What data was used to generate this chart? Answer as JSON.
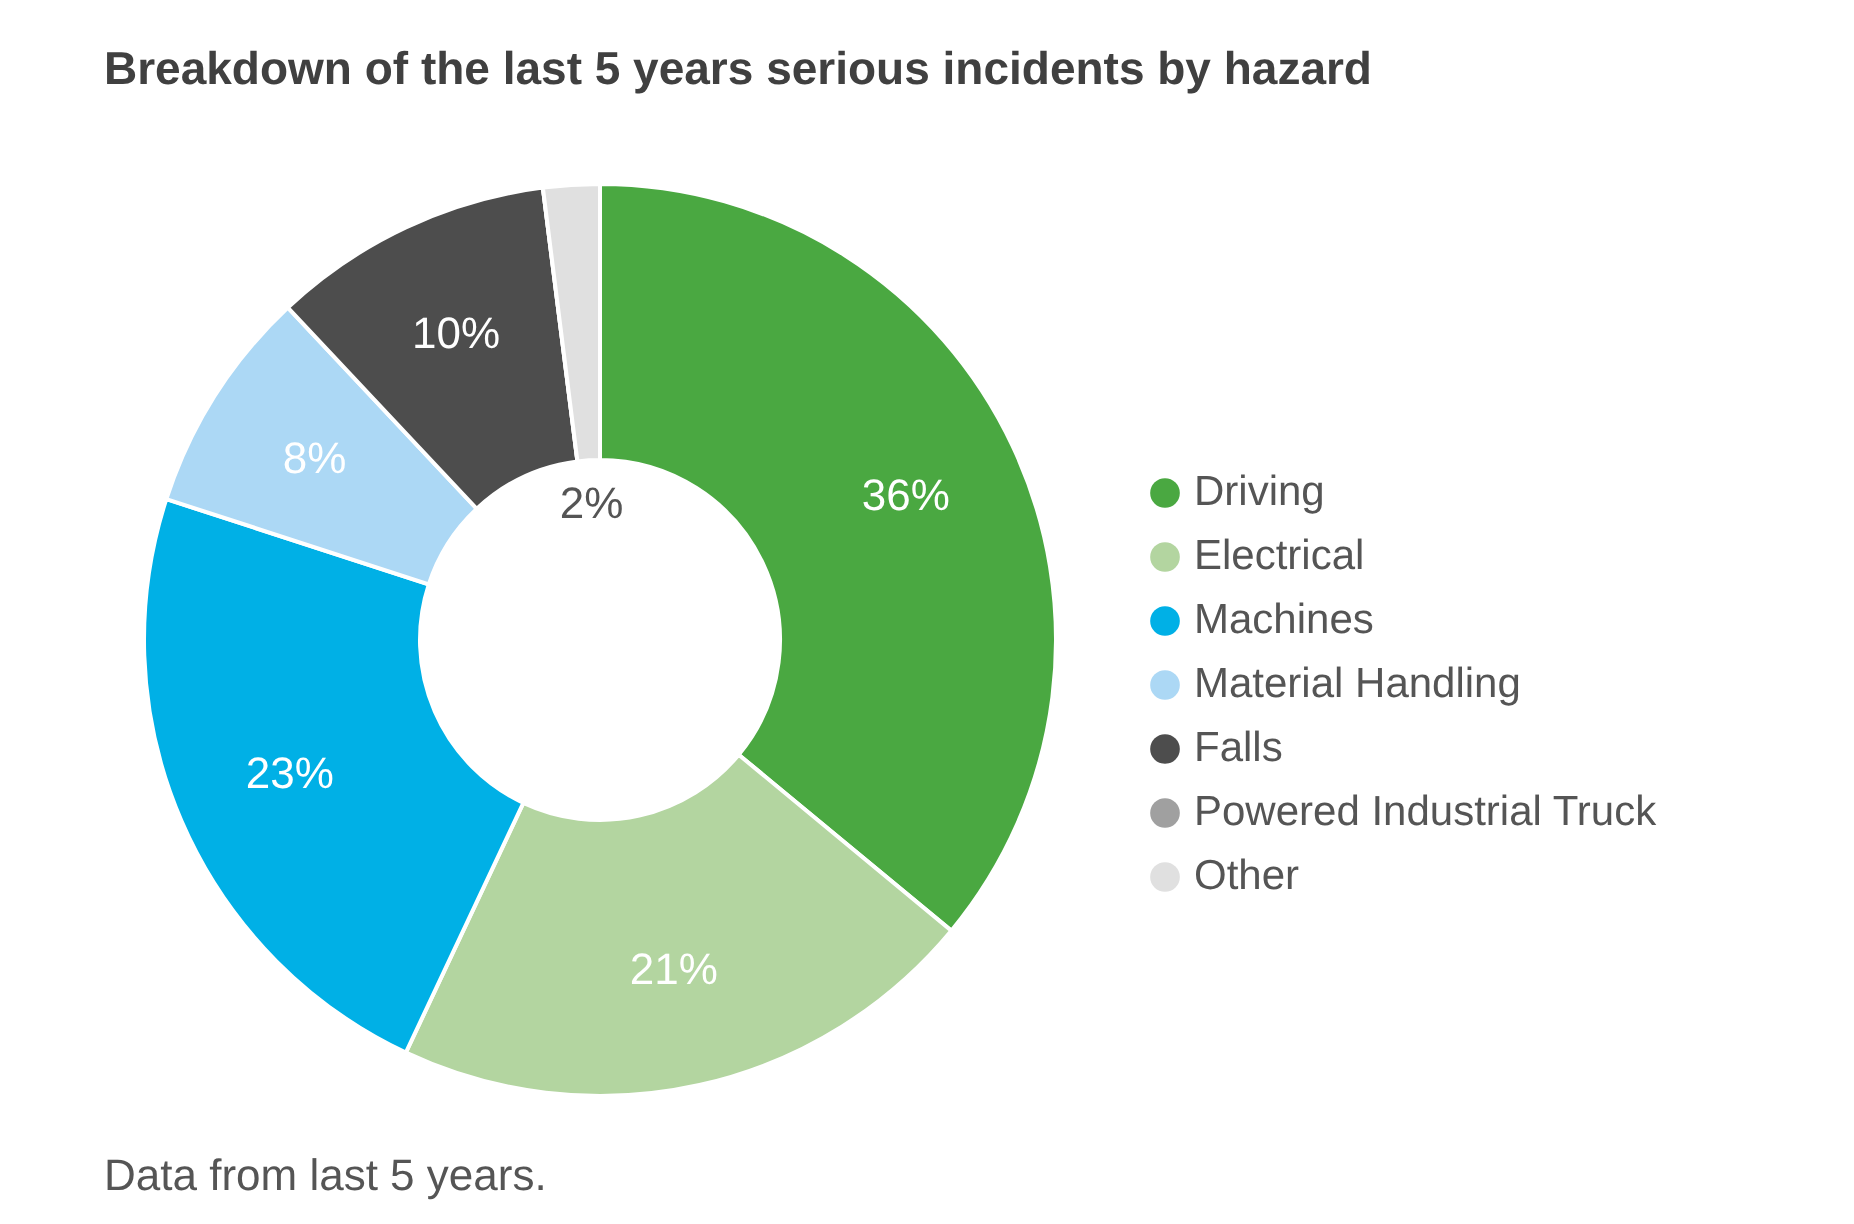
{
  "chart_data": {
    "type": "donut",
    "title": "Breakdown of the last 5 years serious incidents by hazard",
    "categories": [
      "Driving",
      "Electrical",
      "Machines",
      "Material Handling",
      "Falls",
      "Powered Industrial Truck",
      "Other"
    ],
    "values": [
      36,
      21,
      23,
      8,
      10,
      0,
      2
    ],
    "value_labels": [
      "36%",
      "21%",
      "23%",
      "8%",
      "10%",
      null,
      "2%"
    ],
    "colors": [
      "#4aa841",
      "#b3d5a0",
      "#00b0e6",
      "#acd8f5",
      "#4d4d4d",
      "#a0a0a0",
      "#e0e0e0"
    ],
    "legend": "right",
    "annotations": [
      "Data from last 5 years."
    ]
  }
}
